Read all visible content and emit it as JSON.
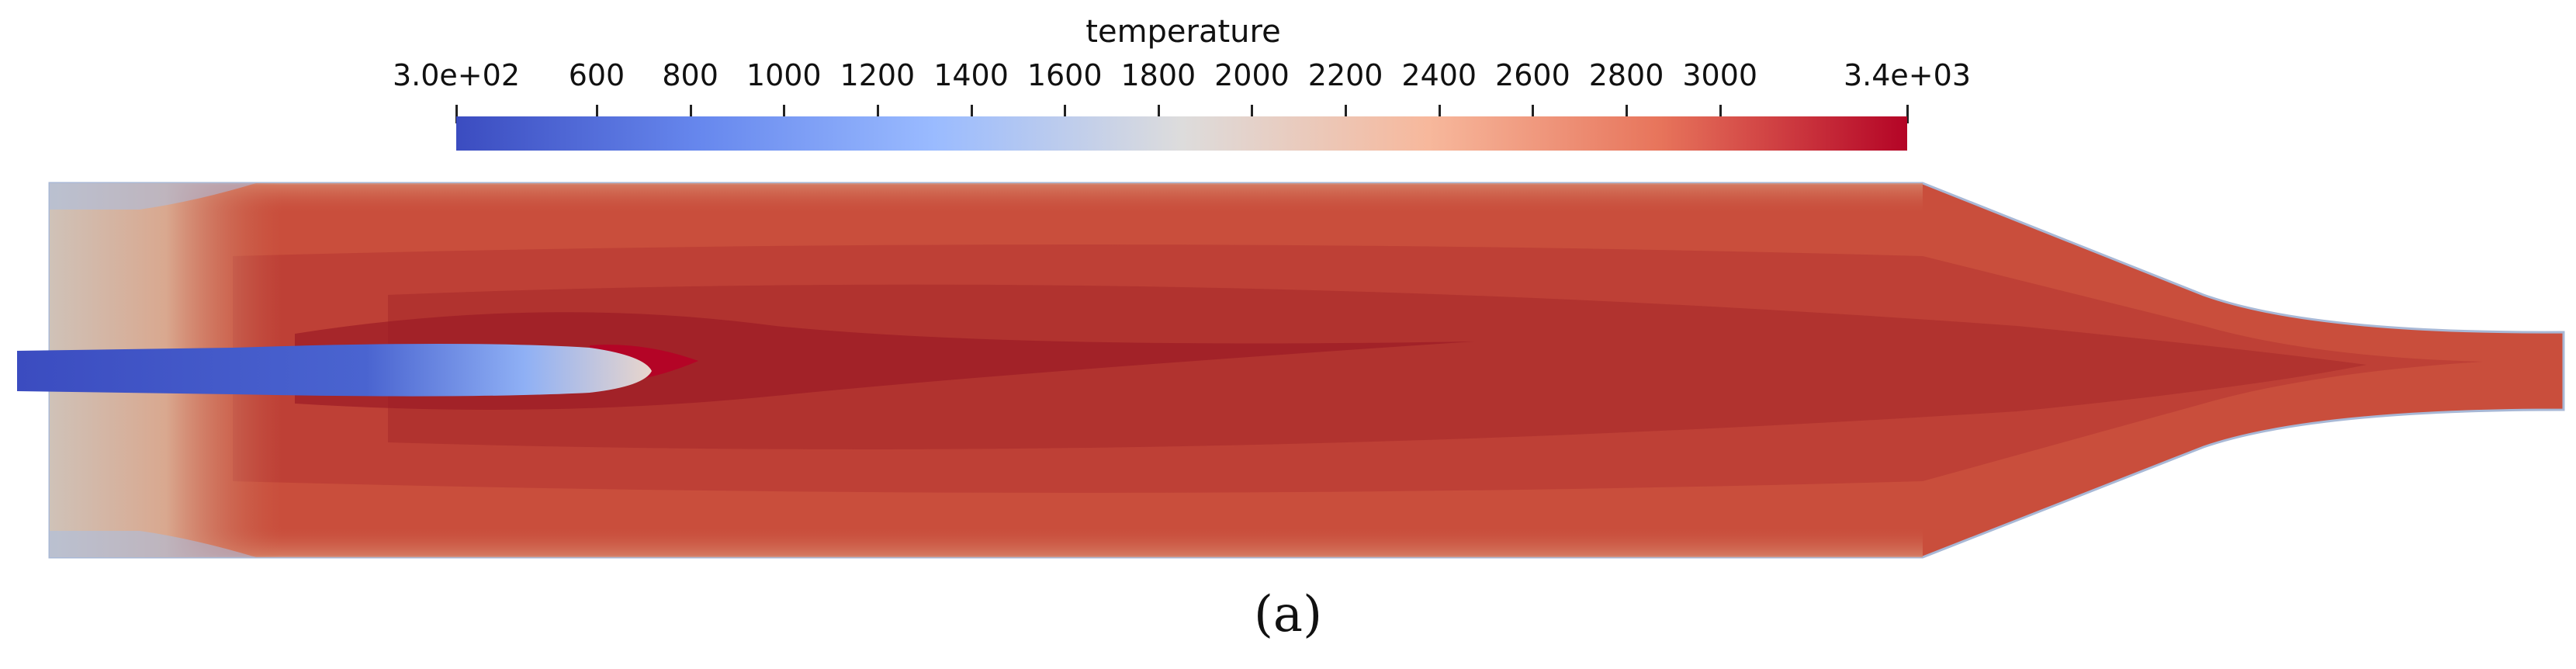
{
  "colorbar": {
    "title": "temperature",
    "ticks": [
      {
        "label": "3.0e+02",
        "value": 300
      },
      {
        "label": "600",
        "value": 600
      },
      {
        "label": "800",
        "value": 800
      },
      {
        "label": "1000",
        "value": 1000
      },
      {
        "label": "1200",
        "value": 1200
      },
      {
        "label": "1400",
        "value": 1400
      },
      {
        "label": "1600",
        "value": 1600
      },
      {
        "label": "1800",
        "value": 1800
      },
      {
        "label": "2000",
        "value": 2000
      },
      {
        "label": "2200",
        "value": 2200
      },
      {
        "label": "2400",
        "value": 2400
      },
      {
        "label": "2600",
        "value": 2600
      },
      {
        "label": "2800",
        "value": 2800
      },
      {
        "label": "3000",
        "value": 3000
      },
      {
        "label": "3.4e+03",
        "value": 3400
      }
    ],
    "range": [
      300,
      3400
    ],
    "colormap": [
      "#3b4cc0",
      "#7b9ff9",
      "#c0d4f5",
      "#dddcdc",
      "#f2cbb7",
      "#ee8468",
      "#b40426"
    ]
  },
  "caption": "(a)"
}
